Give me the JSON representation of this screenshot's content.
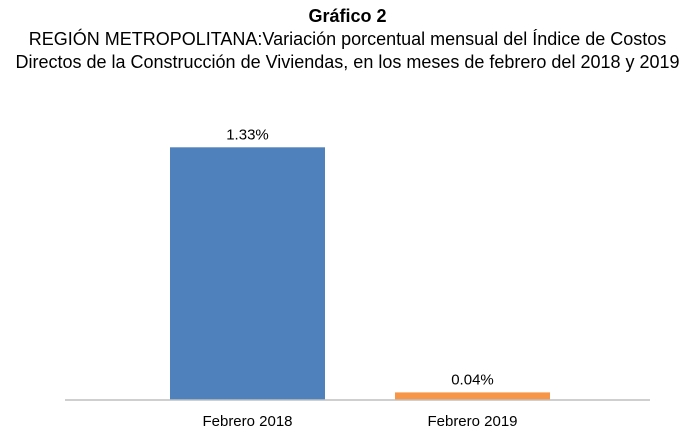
{
  "chart_data": {
    "type": "bar",
    "title": "Gráfico 2",
    "subtitle": "REGIÓN METROPOLITANA:Variación porcentual mensual del Índice de Costos Directos de la Construcción de Viviendas, en los meses de febrero del 2018 y 2019",
    "categories": [
      "Febrero 2018",
      "Febrero 2019"
    ],
    "values": [
      1.33,
      0.04
    ],
    "value_labels": [
      "1.33%",
      "0.04%"
    ],
    "colors": [
      "#4f81bd",
      "#f79646"
    ]
  }
}
